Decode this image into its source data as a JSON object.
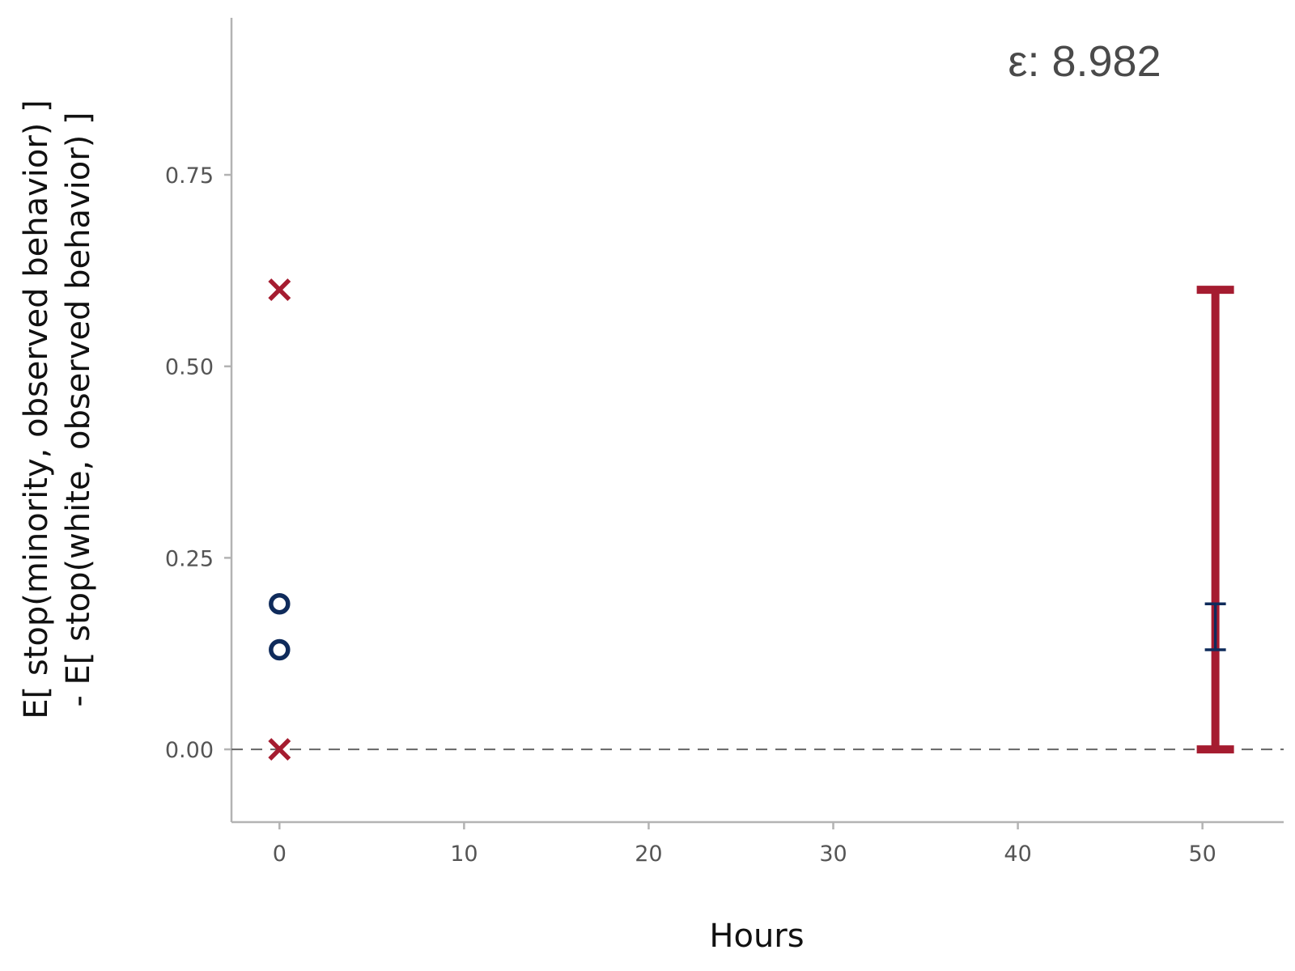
{
  "chart_data": {
    "type": "scatter",
    "title": "",
    "xlabel": "Hours",
    "ylabel_lines": [
      "E[ stop(minority, observed behavior) ]",
      "- E[ stop(white, observed behavior) ]"
    ],
    "annotation": "ε: 8.982",
    "xlim": [
      -2.6,
      54.4
    ],
    "ylim": [
      -0.095,
      0.955
    ],
    "x_ticks": [
      0,
      10,
      20,
      30,
      40,
      50
    ],
    "x_tick_labels": [
      "0",
      "10",
      "20",
      "30",
      "40",
      "50"
    ],
    "y_ticks": [
      0.0,
      0.25,
      0.5,
      0.75
    ],
    "y_tick_labels": [
      "0.00",
      "0.25",
      "0.50",
      "0.75"
    ],
    "reference_line": {
      "y": 0,
      "style": "dashed",
      "color": "#666666"
    },
    "grid": false,
    "legend": "none",
    "series": [
      {
        "marker": "x",
        "color": "#A51C30",
        "points": [
          {
            "x": 0,
            "y": 0.6
          },
          {
            "x": 0,
            "y": 0.0
          }
        ]
      },
      {
        "marker": "circle-open",
        "color": "#0F2B5B",
        "points": [
          {
            "x": 0,
            "y": 0.19
          },
          {
            "x": 0,
            "y": 0.13
          }
        ]
      }
    ],
    "error_bars": [
      {
        "x": 50.7,
        "ymin": 0.0,
        "ymax": 0.6,
        "color": "#A51C30",
        "weight": "thick"
      },
      {
        "x": 50.7,
        "ymin": 0.13,
        "ymax": 0.19,
        "color": "#0F2B5B",
        "weight": "thin"
      }
    ]
  }
}
